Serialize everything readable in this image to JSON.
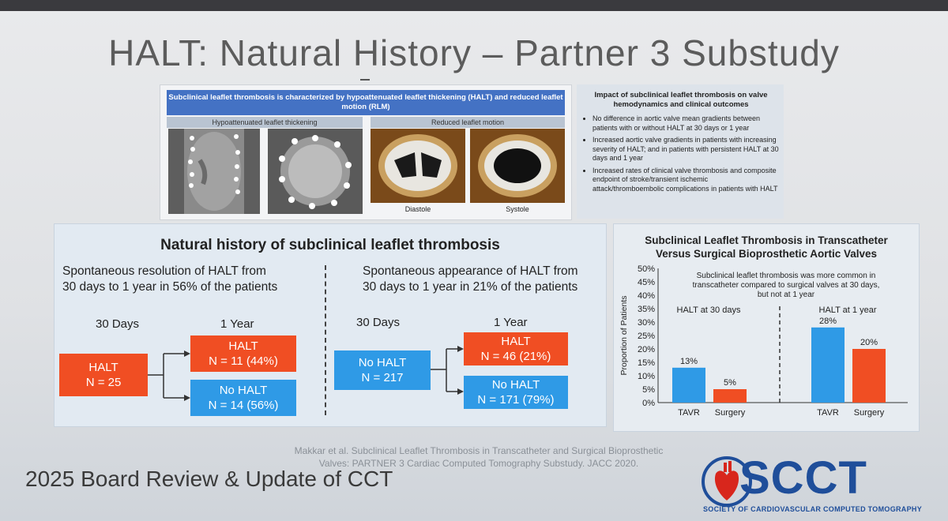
{
  "title": "HALT: Natural History – Partner 3 Substudy",
  "top_figure": {
    "header": "Subclinical leaflet thrombosis is characterized by hypoattenuated leaflet thickening (HALT) and reduced leaflet motion (RLM)",
    "left_header": "Hypoattenuated leaflet thickening",
    "right_header": "Reduced leaflet motion",
    "caption_diastole": "Diastole",
    "caption_systole": "Systole"
  },
  "impact": {
    "title": "Impact of subclinical leaflet thrombosis on valve hemodynamics and clinical outcomes",
    "bullets": [
      "No difference in aortic valve mean gradients between patients with or without HALT at 30 days or 1 year",
      "Increased aortic valve gradients in patients with increasing severity of HALT; and in patients with persistent HALT at 30 days and 1 year",
      "Increased rates of clinical valve thrombosis and composite endpoint of stroke/transient ischemic attack/thromboembolic complications in patients with HALT"
    ]
  },
  "natural_history": {
    "title": "Natural history of subclinical leaflet thrombosis",
    "left": {
      "heading_line1": "Spontaneous resolution of HALT from",
      "heading_line2": "30 days to 1 year in 56% of the patients",
      "label_30": "30 Days",
      "label_1y": "1 Year",
      "start_line1": "HALT",
      "start_line2": "N = 25",
      "top_line1": "HALT",
      "top_line2": "N = 11 (44%)",
      "bottom_line1": "No HALT",
      "bottom_line2": "N = 14 (56%)"
    },
    "right": {
      "heading_line1": "Spontaneous appearance of HALT from",
      "heading_line2": "30 days to 1 year in 21% of the patients",
      "label_30": "30 Days",
      "label_1y": "1 Year",
      "start_line1": "No HALT",
      "start_line2": "N = 217",
      "top_line1": "HALT",
      "top_line2": "N = 46 (21%)",
      "bottom_line1": "No HALT",
      "bottom_line2": "N = 171 (79%)"
    }
  },
  "chart_data": {
    "type": "bar",
    "title_line1": "Subclinical Leaflet Thrombosis in Transcatheter",
    "title_line2": "Versus Surgical Bioprosthetic Aortic Valves",
    "annotation_line1": "Subclinical leaflet thrombosis was more common in",
    "annotation_line2": "transcatheter compared to surgical valves at 30 days,",
    "annotation_line3": "but not at 1 year",
    "ylabel": "Proportion of Patients",
    "ylim": [
      0,
      50
    ],
    "yticks": [
      "0%",
      "5%",
      "10%",
      "15%",
      "20%",
      "25%",
      "30%",
      "35%",
      "40%",
      "45%",
      "50%"
    ],
    "groups": [
      {
        "name": "HALT at 30 days",
        "bars": [
          {
            "category": "TAVR",
            "value": 13,
            "label": "13%",
            "color": "#2f9ae6"
          },
          {
            "category": "Surgery",
            "value": 5,
            "label": "5%",
            "color": "#f04e23"
          }
        ]
      },
      {
        "name": "HALT at 1 year",
        "bars": [
          {
            "category": "TAVR",
            "value": 28,
            "label": "28%",
            "color": "#2f9ae6"
          },
          {
            "category": "Surgery",
            "value": 20,
            "label": "20%",
            "color": "#f04e23"
          }
        ]
      }
    ]
  },
  "footer": {
    "reference_line1": "Makkar et al. Subclinical Leaflet Thrombosis in Transcatheter and Surgical Bioprosthetic",
    "reference_line2": "Valves: PARTNER 3 Cardiac Computed Tomography Substudy. JACC 2020.",
    "course": "2025 Board Review & Update of CCT",
    "logo_text": "SCCT",
    "logo_sub": "SOCIETY OF CARDIOVASCULAR COMPUTED TOMOGRAPHY"
  }
}
